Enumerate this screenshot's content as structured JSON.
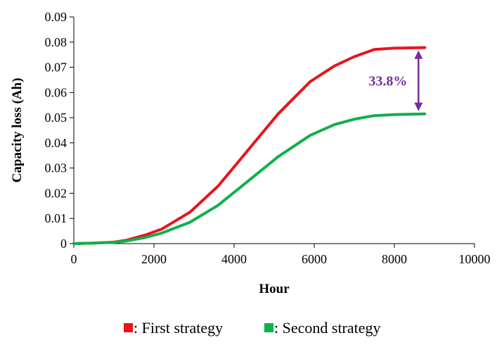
{
  "chart_data": {
    "type": "line",
    "xlabel": "Hour",
    "ylabel": "Capacity  loss (Ah)",
    "xlim": [
      0,
      10000
    ],
    "ylim": [
      0,
      0.09
    ],
    "x_ticks": [
      "0",
      "2000",
      "4000",
      "6000",
      "8000",
      "10000"
    ],
    "y_ticks": [
      "0",
      "0.01",
      "0.02",
      "0.03",
      "0.04",
      "0.05",
      "0.06",
      "0.07",
      "0.08",
      "0.09"
    ],
    "grid": false,
    "legend_position": "bottom",
    "series": [
      {
        "name": ": First strategy",
        "color": "#e8141b",
        "x": [
          0,
          500,
          1000,
          1300,
          1800,
          2200,
          2900,
          3600,
          4300,
          5100,
          5900,
          6500,
          7000,
          7500,
          8000,
          8760
        ],
        "y": [
          0,
          0.0002,
          0.0006,
          0.0013,
          0.0035,
          0.0058,
          0.0125,
          0.0228,
          0.0362,
          0.0515,
          0.0643,
          0.0705,
          0.0742,
          0.0771,
          0.0776,
          0.0778
        ]
      },
      {
        "name": ": Second strategy",
        "color": "#10b04a",
        "x": [
          0,
          500,
          1000,
          1300,
          1800,
          2200,
          2900,
          3600,
          4300,
          5100,
          5900,
          6500,
          7000,
          7500,
          8000,
          8760
        ],
        "y": [
          0,
          0.0002,
          0.0005,
          0.001,
          0.0025,
          0.0042,
          0.0085,
          0.0152,
          0.0242,
          0.0345,
          0.043,
          0.0472,
          0.0494,
          0.0508,
          0.0512,
          0.0515
        ]
      }
    ],
    "annotations": [
      {
        "text": "33.8%",
        "color": "#7b2aa0",
        "x": 8760,
        "y_from": 0.0778,
        "y_to": 0.0515
      }
    ]
  }
}
